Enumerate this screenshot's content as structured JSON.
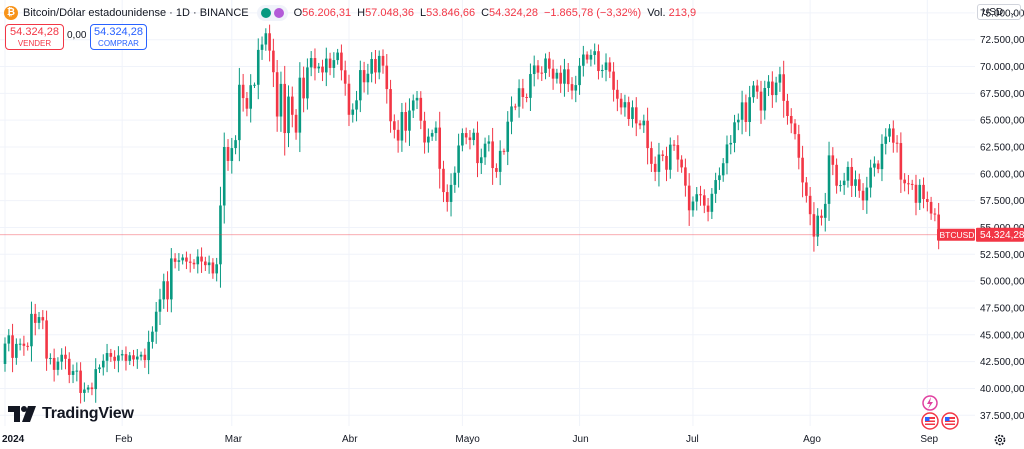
{
  "header": {
    "title": "Bitcoin/Dólar estadounidense · 1D · BINANCE",
    "o_label": "O",
    "o_value": "56.206,31",
    "h_label": "H",
    "h_value": "57.048,36",
    "l_label": "L",
    "l_value": "53.846,66",
    "c_label": "C",
    "c_value": "54.324,28",
    "change": "−1.865,78 (−3,32%)",
    "vol_label": "Vol.",
    "vol_value": "213,9"
  },
  "quotes": {
    "sell_price": "54.324,28",
    "sell_label": "VENDER",
    "spread": "0,00",
    "buy_price": "54.324,28",
    "buy_label": "COMPRAR"
  },
  "currency_select": "USD",
  "brand": "TradingView",
  "price_tag": {
    "symbol": "BTCUSD",
    "value": "54.324,28"
  },
  "colors": {
    "up": "#089981",
    "down": "#f23645",
    "accent": "#2962ff",
    "grid": "#f0f3fa"
  },
  "icons": [
    "bitcoin-icon",
    "share-icon",
    "tradingview-logo-icon",
    "lightning-icon",
    "us-flag-event-icon",
    "settings-gear-icon"
  ],
  "chart_data": {
    "type": "candlestick",
    "title": "Bitcoin/Dólar estadounidense · 1D · BINANCE",
    "y_range": [
      36500,
      76200
    ],
    "y_ticks": [
      "75.000,00",
      "72.500,00",
      "70.000,00",
      "67.500,00",
      "65.000,00",
      "62.500,00",
      "60.000,00",
      "57.500,00",
      "55.000,00",
      "52.500,00",
      "50.000,00",
      "47.500,00",
      "45.000,00",
      "42.500,00",
      "40.000,00",
      "37.500,00"
    ],
    "y_tick_values": [
      75000,
      72500,
      70000,
      67500,
      65000,
      62500,
      60000,
      57500,
      55000,
      52500,
      50000,
      47500,
      45000,
      42500,
      40000,
      37500
    ],
    "x_labels": [
      {
        "label": "2024",
        "index": 0
      },
      {
        "label": "Feb",
        "index": 31
      },
      {
        "label": "Mar",
        "index": 60
      },
      {
        "label": "Abr",
        "index": 91
      },
      {
        "label": "Mayo",
        "index": 121
      },
      {
        "label": "Jun",
        "index": 152
      },
      {
        "label": "Jul",
        "index": 182
      },
      {
        "label": "Ago",
        "index": 213
      },
      {
        "label": "Sep",
        "index": 244
      }
    ],
    "last_price": 54324.28,
    "start_open": 42280,
    "closes": [
      44180,
      44950,
      42850,
      44150,
      44170,
      43970,
      43930,
      46950,
      46110,
      46650,
      46340,
      42780,
      42840,
      41730,
      42500,
      43140,
      42760,
      41260,
      41620,
      41660,
      39580,
      39900,
      40090,
      39940,
      41800,
      41960,
      42580,
      43300,
      42950,
      42580,
      43080,
      43200,
      42570,
      43090,
      42700,
      42970,
      43140,
      42640,
      44340,
      45290,
      47150,
      48300,
      49990,
      48300,
      52120,
      51800,
      51940,
      52200,
      51820,
      51710,
      51570,
      52290,
      51830,
      51490,
      51740,
      50720,
      51570,
      57050,
      62500,
      61200,
      62400,
      63140,
      68300,
      67060,
      66070,
      68260,
      68300,
      71550,
      72050,
      73100,
      71480,
      69470,
      65340,
      68380,
      63800,
      67200,
      65500,
      63840,
      68960,
      67030,
      69920,
      70790,
      69830,
      69990,
      69450,
      70740,
      69870,
      70600,
      71300,
      69650,
      68400,
      65500,
      65990,
      66850,
      69670,
      68530,
      69330,
      70700,
      69450,
      70990,
      70080,
      67900,
      64900,
      64100,
      63100,
      65760,
      64020,
      65900,
      66840,
      67080,
      64950,
      62920,
      63470,
      63800,
      64310,
      60470,
      58300,
      57380,
      58970,
      60100,
      62640,
      63800,
      63390,
      63150,
      63830,
      61000,
      61540,
      62810,
      63020,
      60540,
      60180,
      62140,
      62050,
      64860,
      66280,
      66260,
      67980,
      67160,
      67080,
      69300,
      70100,
      69430,
      69400,
      70750,
      69800,
      68870,
      69420,
      68400,
      69740,
      68360,
      67760,
      68270,
      70070,
      71120,
      70650,
      71080,
      71430,
      69580,
      69680,
      70380,
      69530,
      67830,
      67000,
      66190,
      66680,
      65110,
      66200,
      64700,
      64520,
      64950,
      62400,
      60930,
      60180,
      61800,
      61670,
      60380,
      62720,
      62680,
      61330,
      60600,
      58900,
      56600,
      57420,
      58100,
      58000,
      57040,
      56460,
      58140,
      59420,
      59860,
      60990,
      62740,
      62880,
      64800,
      65040,
      66660,
      64830,
      67140,
      68230,
      67660,
      65900,
      68000,
      68600,
      67340,
      68500,
      69280,
      66800,
      65390,
      64700,
      63700,
      61500,
      59200,
      57950,
      56240,
      54150,
      56100,
      55900,
      57200,
      61720,
      60840,
      58890,
      58950,
      59360,
      60640,
      58880,
      59490,
      58420,
      57520,
      58720,
      60580,
      60960,
      60440,
      62790,
      63470,
      64230,
      62900,
      62870,
      59460,
      59120,
      59060,
      58980,
      57300,
      58970,
      57650,
      57380,
      56300,
      56206,
      54324
    ]
  }
}
